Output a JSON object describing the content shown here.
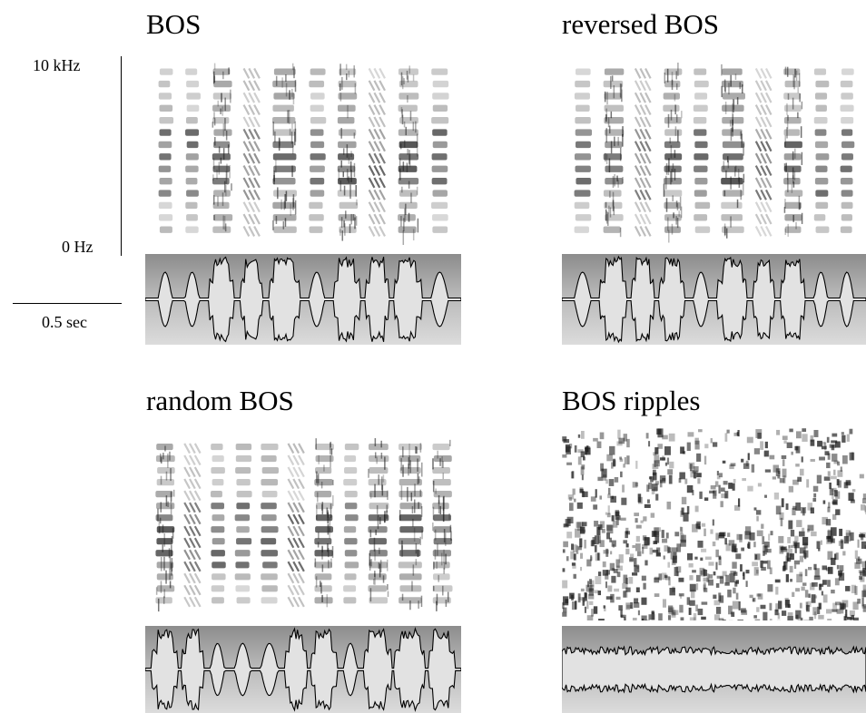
{
  "panels": [
    {
      "title": "BOS",
      "kind": "syllables",
      "pattern": [
        0,
        1,
        2,
        3,
        4,
        5,
        6,
        7,
        8,
        9
      ]
    },
    {
      "title": "reversed BOS",
      "kind": "syllables",
      "pattern": [
        9,
        8,
        7,
        6,
        5,
        4,
        3,
        2,
        1,
        0
      ]
    },
    {
      "title": "random BOS",
      "kind": "syllables",
      "pattern": [
        2,
        7,
        0,
        5,
        9,
        3,
        6,
        1,
        8,
        4,
        2
      ]
    },
    {
      "title": "BOS ripples",
      "kind": "ripples",
      "pattern": []
    }
  ],
  "axes": {
    "freq_max_label": "10 kHz",
    "freq_min_label": "0 Hz",
    "time_scale_label": "0.5 sec"
  },
  "colors": {
    "envelope_fill": "#e2e2e2",
    "envelope_stroke": "#000000",
    "spectro_ink": "#1a1a1a"
  }
}
